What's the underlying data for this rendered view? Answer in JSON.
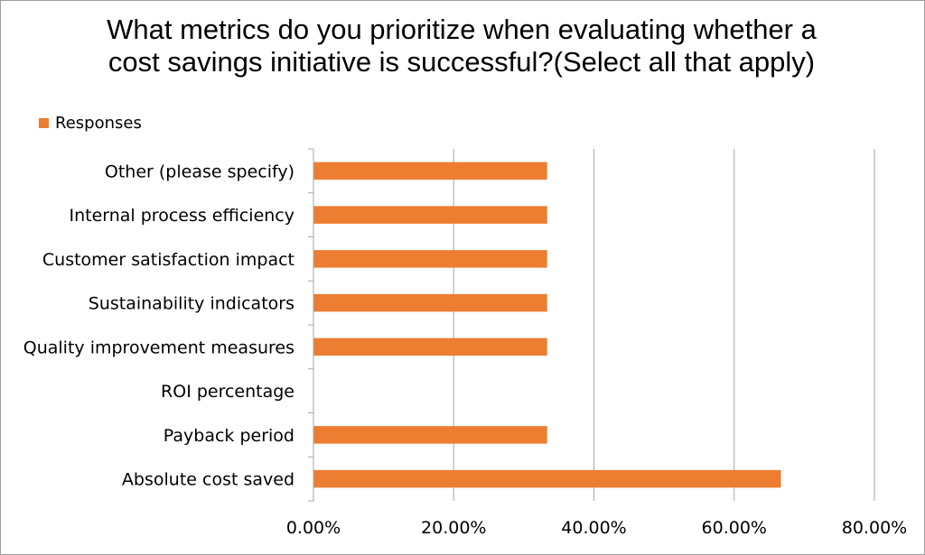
{
  "chart_data": {
    "type": "bar",
    "orientation": "horizontal",
    "title": "What metrics do you prioritize when evaluating whether a cost savings initiative is successful?(Select all that apply)",
    "categories": [
      "Absolute cost saved",
      "Payback period",
      "ROI percentage",
      "Quality improvement measures",
      "Sustainability indicators",
      "Customer satisfaction impact",
      "Internal process efficiency",
      "Other (please specify)"
    ],
    "series": [
      {
        "name": "Responses",
        "color": "#ED7D31",
        "values": [
          0.6667,
          0.3333,
          0,
          0.3333,
          0.3333,
          0.3333,
          0.3333,
          0.3333
        ]
      }
    ],
    "xlim": [
      0,
      0.8
    ],
    "xticks": [
      0,
      0.2,
      0.4,
      0.6,
      0.8
    ],
    "xtick_labels": [
      "0.00%",
      "20.00%",
      "40.00%",
      "60.00%",
      "80.00%"
    ],
    "xlabel": "",
    "ylabel": "",
    "grid": "vertical",
    "legend_position": "top-left"
  }
}
